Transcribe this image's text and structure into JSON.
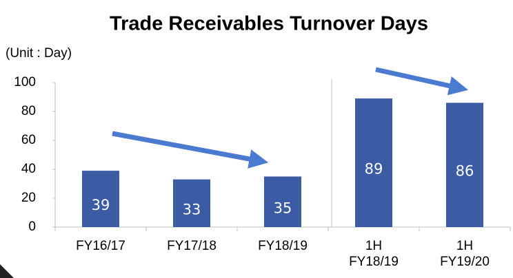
{
  "chart_data": {
    "type": "bar",
    "title": "Trade Receivables Turnover Days",
    "subtitle": "(Unit : Day)",
    "categories": [
      "FY16/17",
      "FY17/18",
      "FY18/19",
      "1H\nFY18/19",
      "1H\nFY19/20"
    ],
    "values": [
      39,
      33,
      35,
      89,
      86
    ],
    "color": "#3b5ba5",
    "ylim": [
      0,
      100
    ],
    "yticks": [
      0,
      20,
      40,
      60,
      80,
      100
    ],
    "grid": false
  }
}
